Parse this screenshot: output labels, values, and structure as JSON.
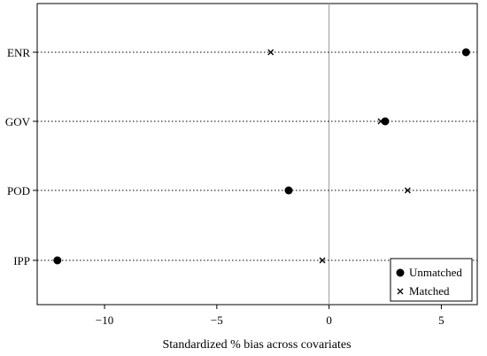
{
  "chart_data": {
    "type": "scatter",
    "title": "",
    "xlabel": "Standardized % bias across covariates",
    "ylabel": "",
    "xlim": [
      -13,
      6.6
    ],
    "xticks": [
      -10,
      -5,
      0,
      5
    ],
    "xtick_labels": [
      "−10",
      "−5",
      "0",
      "5"
    ],
    "categories": [
      "ENR",
      "GOV",
      "POD",
      "IPP"
    ],
    "reference_line_x": 0,
    "grid": "dotted horizontal lines at each category",
    "legend_position": "bottom-right",
    "series": [
      {
        "name": "Unmatched",
        "marker": "filled-circle",
        "values": [
          6.1,
          2.5,
          -1.8,
          -12.1
        ]
      },
      {
        "name": "Matched",
        "marker": "x",
        "values": [
          -2.6,
          2.3,
          3.5,
          -0.3
        ]
      }
    ]
  }
}
